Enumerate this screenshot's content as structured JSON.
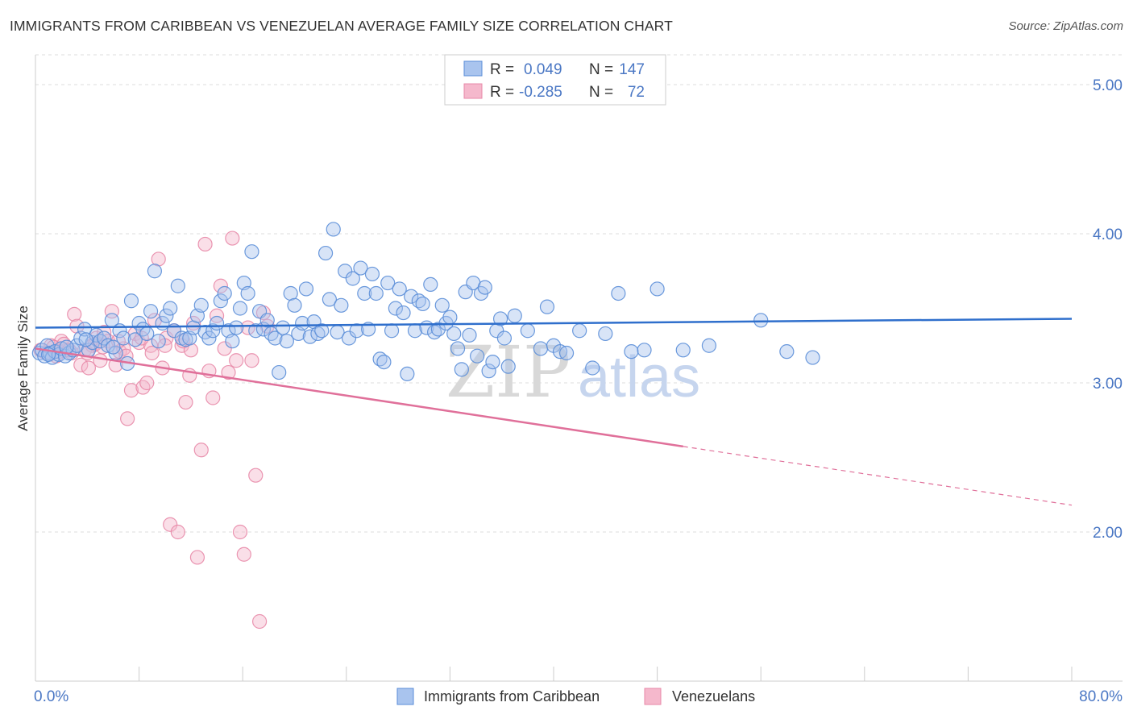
{
  "header": {
    "title": "IMMIGRANTS FROM CARIBBEAN VS VENEZUELAN AVERAGE FAMILY SIZE CORRELATION CHART",
    "source": "Source: ZipAtlas.com"
  },
  "watermark": {
    "zip": "ZIP",
    "atlas": "atlas"
  },
  "colors": {
    "blue_fill": "#a9c4ee",
    "blue_stroke": "#5b8ed8",
    "blue_line": "#2f6fcc",
    "pink_fill": "#f5b8cc",
    "pink_stroke": "#e889a8",
    "pink_line": "#e0709a",
    "axis_text": "#4a77c4",
    "grid": "#dddddd"
  },
  "chart_data": {
    "type": "scatter",
    "xlabel": "",
    "ylabel": "Average Family Size",
    "xlim": [
      0,
      80
    ],
    "ylim": [
      1.0,
      5.2
    ],
    "x_tick_labels": [
      "0.0%",
      "80.0%"
    ],
    "y_ticks": [
      2.0,
      3.0,
      4.0,
      5.0
    ],
    "y_tick_labels": [
      "2.00",
      "3.00",
      "4.00",
      "5.00"
    ],
    "grid": "horizontal dashed",
    "legend_position": "top-center",
    "legend": [
      {
        "r_label": "R =",
        "r_value": "0.049",
        "n_label": "N =",
        "n_value": "147"
      },
      {
        "r_label": "R =",
        "r_value": "-0.285",
        "n_label": "N =",
        "n_value": "72"
      }
    ],
    "series": [
      {
        "name": "Immigrants from Caribbean",
        "color": "blue",
        "trend": {
          "x0": 0,
          "y0": 3.37,
          "x1": 80,
          "y1": 3.43
        },
        "points": [
          [
            0.3,
            3.2
          ],
          [
            0.5,
            3.22
          ],
          [
            0.7,
            3.18
          ],
          [
            0.9,
            3.25
          ],
          [
            1.1,
            3.2
          ],
          [
            1.3,
            3.17
          ],
          [
            1.5,
            3.21
          ],
          [
            1.8,
            3.19
          ],
          [
            2.0,
            3.23
          ],
          [
            2.3,
            3.18
          ],
          [
            2.6,
            3.2
          ],
          [
            2.9,
            3.22
          ],
          [
            3.2,
            3.25
          ],
          [
            3.5,
            3.3
          ],
          [
            3.8,
            3.36
          ],
          [
            4.1,
            3.22
          ],
          [
            4.4,
            3.27
          ],
          [
            4.7,
            3.32
          ],
          [
            5.0,
            3.28
          ],
          [
            5.3,
            3.3
          ],
          [
            5.6,
            3.25
          ],
          [
            5.9,
            3.42
          ],
          [
            6.2,
            3.2
          ],
          [
            6.5,
            3.35
          ],
          [
            6.8,
            3.3
          ],
          [
            7.1,
            3.13
          ],
          [
            7.4,
            3.55
          ],
          [
            7.7,
            3.29
          ],
          [
            8.0,
            3.4
          ],
          [
            8.3,
            3.36
          ],
          [
            8.6,
            3.33
          ],
          [
            8.9,
            3.48
          ],
          [
            9.2,
            3.75
          ],
          [
            9.5,
            3.28
          ],
          [
            9.8,
            3.4
          ],
          [
            10.1,
            3.45
          ],
          [
            10.4,
            3.5
          ],
          [
            10.7,
            3.35
          ],
          [
            11.0,
            3.65
          ],
          [
            11.3,
            3.3
          ],
          [
            11.6,
            3.29
          ],
          [
            11.9,
            3.3
          ],
          [
            12.2,
            3.37
          ],
          [
            12.5,
            3.45
          ],
          [
            12.8,
            3.52
          ],
          [
            13.1,
            3.34
          ],
          [
            13.4,
            3.3
          ],
          [
            13.7,
            3.35
          ],
          [
            14.0,
            3.4
          ],
          [
            14.3,
            3.55
          ],
          [
            14.6,
            3.6
          ],
          [
            14.9,
            3.35
          ],
          [
            15.2,
            3.28
          ],
          [
            15.5,
            3.37
          ],
          [
            15.8,
            3.5
          ],
          [
            16.1,
            3.67
          ],
          [
            16.4,
            3.6
          ],
          [
            16.7,
            3.88
          ],
          [
            17.0,
            3.35
          ],
          [
            17.3,
            3.48
          ],
          [
            17.6,
            3.36
          ],
          [
            17.9,
            3.42
          ],
          [
            18.2,
            3.33
          ],
          [
            18.5,
            3.3
          ],
          [
            18.8,
            3.07
          ],
          [
            19.1,
            3.37
          ],
          [
            19.4,
            3.28
          ],
          [
            19.7,
            3.6
          ],
          [
            20.0,
            3.52
          ],
          [
            20.3,
            3.33
          ],
          [
            20.6,
            3.4
          ],
          [
            20.9,
            3.63
          ],
          [
            21.2,
            3.31
          ],
          [
            21.5,
            3.41
          ],
          [
            21.8,
            3.33
          ],
          [
            22.1,
            3.35
          ],
          [
            22.4,
            3.87
          ],
          [
            22.7,
            3.56
          ],
          [
            23.0,
            4.03
          ],
          [
            23.3,
            3.34
          ],
          [
            23.6,
            3.52
          ],
          [
            23.9,
            3.75
          ],
          [
            24.2,
            3.3
          ],
          [
            24.5,
            3.7
          ],
          [
            24.8,
            3.35
          ],
          [
            25.1,
            3.77
          ],
          [
            25.4,
            3.6
          ],
          [
            25.7,
            3.36
          ],
          [
            26.0,
            3.73
          ],
          [
            26.3,
            3.6
          ],
          [
            26.6,
            3.16
          ],
          [
            26.9,
            3.14
          ],
          [
            27.2,
            3.67
          ],
          [
            27.5,
            3.35
          ],
          [
            27.8,
            3.5
          ],
          [
            28.1,
            3.63
          ],
          [
            28.4,
            3.47
          ],
          [
            28.7,
            3.06
          ],
          [
            29.0,
            3.58
          ],
          [
            29.3,
            3.35
          ],
          [
            29.6,
            3.55
          ],
          [
            29.9,
            3.53
          ],
          [
            30.2,
            3.37
          ],
          [
            30.5,
            3.66
          ],
          [
            30.8,
            3.34
          ],
          [
            31.1,
            3.36
          ],
          [
            31.4,
            3.52
          ],
          [
            31.7,
            3.4
          ],
          [
            32.0,
            3.44
          ],
          [
            32.3,
            3.33
          ],
          [
            32.6,
            3.23
          ],
          [
            32.9,
            3.09
          ],
          [
            33.2,
            3.61
          ],
          [
            33.5,
            3.32
          ],
          [
            33.8,
            3.67
          ],
          [
            34.1,
            3.18
          ],
          [
            34.4,
            3.6
          ],
          [
            34.7,
            3.64
          ],
          [
            35.0,
            3.08
          ],
          [
            35.3,
            3.14
          ],
          [
            35.6,
            3.35
          ],
          [
            35.9,
            3.43
          ],
          [
            36.2,
            3.3
          ],
          [
            36.5,
            3.11
          ],
          [
            37.0,
            3.45
          ],
          [
            38.0,
            3.35
          ],
          [
            39.0,
            3.23
          ],
          [
            39.5,
            3.51
          ],
          [
            40.0,
            3.25
          ],
          [
            40.5,
            3.21
          ],
          [
            41.0,
            3.2
          ],
          [
            42.0,
            3.35
          ],
          [
            43.0,
            3.1
          ],
          [
            44.0,
            3.33
          ],
          [
            45.0,
            3.6
          ],
          [
            46.0,
            3.21
          ],
          [
            47.0,
            3.22
          ],
          [
            48.0,
            3.63
          ],
          [
            50.0,
            3.22
          ],
          [
            52.0,
            3.25
          ],
          [
            56.0,
            3.42
          ],
          [
            58.0,
            3.21
          ],
          [
            60.0,
            3.17
          ],
          [
            1.0,
            3.19
          ],
          [
            2.4,
            3.24
          ],
          [
            3.9,
            3.29
          ],
          [
            6.0,
            3.24
          ]
        ]
      },
      {
        "name": "Venezuelans",
        "color": "pink",
        "trend": {
          "x0": 0,
          "y0": 3.23,
          "x1": 80,
          "y1": 2.18,
          "solid_until": 50
        },
        "points": [
          [
            0.4,
            3.22
          ],
          [
            0.8,
            3.2
          ],
          [
            1.2,
            3.25
          ],
          [
            1.6,
            3.18
          ],
          [
            2.0,
            3.28
          ],
          [
            2.4,
            3.22
          ],
          [
            2.8,
            3.2
          ],
          [
            3.0,
            3.46
          ],
          [
            3.2,
            3.38
          ],
          [
            3.5,
            3.12
          ],
          [
            3.8,
            3.22
          ],
          [
            4.1,
            3.1
          ],
          [
            4.4,
            3.25
          ],
          [
            4.7,
            3.3
          ],
          [
            5.0,
            3.15
          ],
          [
            5.3,
            3.34
          ],
          [
            5.6,
            3.28
          ],
          [
            5.9,
            3.48
          ],
          [
            6.2,
            3.12
          ],
          [
            6.5,
            3.21
          ],
          [
            6.8,
            3.23
          ],
          [
            7.1,
            2.76
          ],
          [
            7.4,
            2.95
          ],
          [
            7.7,
            3.33
          ],
          [
            8.0,
            3.27
          ],
          [
            8.3,
            2.97
          ],
          [
            8.6,
            3.0
          ],
          [
            8.9,
            3.25
          ],
          [
            9.2,
            3.42
          ],
          [
            9.5,
            3.83
          ],
          [
            9.8,
            3.1
          ],
          [
            10.1,
            3.3
          ],
          [
            10.4,
            2.05
          ],
          [
            10.7,
            3.35
          ],
          [
            11.0,
            2.0
          ],
          [
            11.3,
            3.25
          ],
          [
            11.6,
            2.87
          ],
          [
            11.9,
            3.05
          ],
          [
            12.2,
            3.4
          ],
          [
            12.5,
            1.83
          ],
          [
            12.8,
            2.55
          ],
          [
            13.1,
            3.93
          ],
          [
            13.4,
            3.08
          ],
          [
            13.7,
            2.9
          ],
          [
            14.0,
            3.45
          ],
          [
            14.3,
            3.65
          ],
          [
            14.6,
            3.23
          ],
          [
            14.9,
            3.07
          ],
          [
            15.2,
            3.97
          ],
          [
            15.5,
            3.15
          ],
          [
            15.8,
            2.0
          ],
          [
            16.1,
            1.85
          ],
          [
            16.4,
            3.37
          ],
          [
            16.7,
            3.15
          ],
          [
            17.0,
            2.38
          ],
          [
            17.3,
            1.4
          ],
          [
            17.6,
            3.47
          ],
          [
            17.9,
            3.38
          ],
          [
            1.4,
            3.24
          ],
          [
            1.8,
            3.21
          ],
          [
            2.2,
            3.26
          ],
          [
            2.6,
            3.22
          ],
          [
            4.0,
            3.2
          ],
          [
            4.6,
            3.26
          ],
          [
            5.2,
            3.24
          ],
          [
            6.4,
            3.28
          ],
          [
            7.0,
            3.18
          ],
          [
            8.2,
            3.3
          ],
          [
            9.0,
            3.2
          ],
          [
            10.0,
            3.25
          ],
          [
            11.4,
            3.28
          ],
          [
            12.0,
            3.22
          ]
        ]
      }
    ]
  },
  "bottom_legend": [
    {
      "label": "Immigrants from Caribbean"
    },
    {
      "label": "Venezuelans"
    }
  ]
}
